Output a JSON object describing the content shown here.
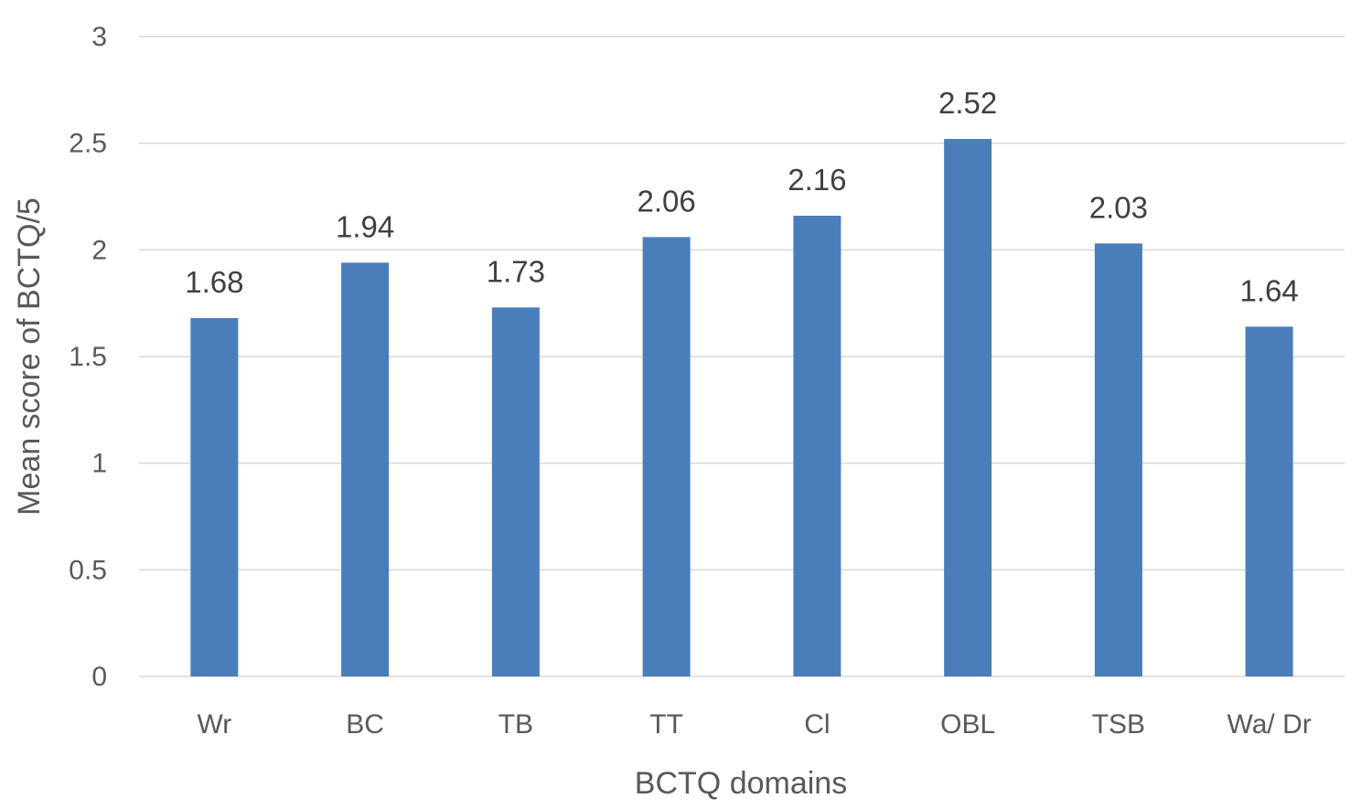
{
  "chart_data": {
    "type": "bar",
    "title": "",
    "xlabel": "BCTQ domains",
    "ylabel": "Mean score of BCTQ/5",
    "categories": [
      "Wr",
      "BC",
      "TB",
      "TT",
      "Cl",
      "OBL",
      "TSB",
      "Wa/ Dr"
    ],
    "values": [
      1.68,
      1.94,
      1.73,
      2.06,
      2.16,
      2.52,
      2.03,
      1.64
    ],
    "data_labels": [
      "1.68",
      "1.94",
      "1.73",
      "2.06",
      "2.16",
      "2.52",
      "2.03",
      "1.64"
    ],
    "ylim": [
      0,
      3
    ],
    "yticks": [
      0,
      0.5,
      1,
      1.5,
      2,
      2.5,
      3
    ],
    "ytick_labels": [
      "0",
      "0.5",
      "1",
      "1.5",
      "2",
      "2.5",
      "3"
    ],
    "grid": true,
    "legend": "none",
    "bar_color": "#4a7ebb",
    "grid_color": "#d9d9d9"
  }
}
